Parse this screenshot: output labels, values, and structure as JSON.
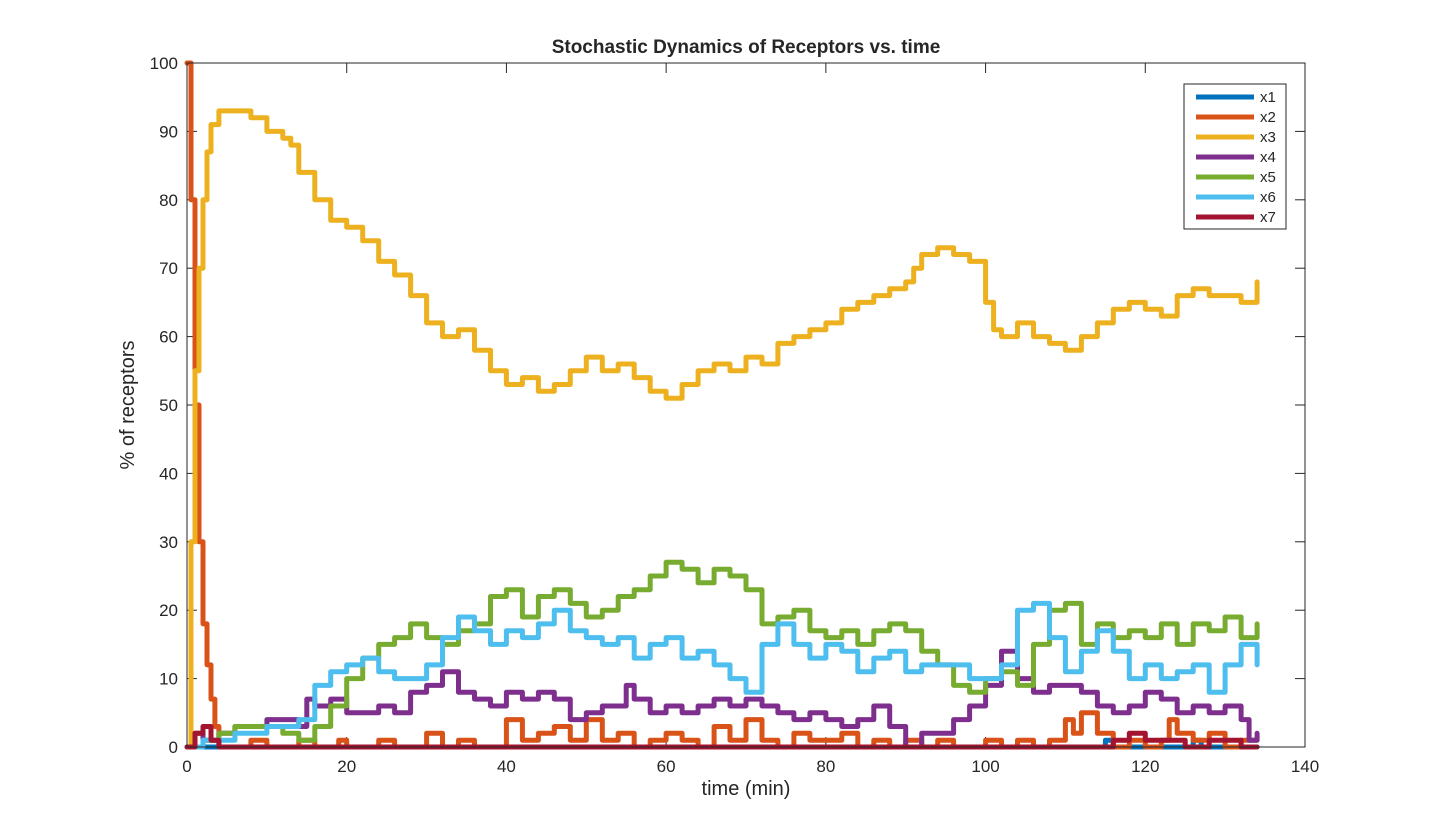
{
  "chart_data": {
    "type": "line",
    "title": "Stochastic Dynamics of Receptors vs. time",
    "xlabel": "time (min)",
    "ylabel": "% of receptors",
    "xlim": [
      0,
      140
    ],
    "ylim": [
      0,
      100
    ],
    "xticks": [
      0,
      20,
      40,
      60,
      80,
      100,
      120,
      140
    ],
    "yticks": [
      0,
      10,
      20,
      30,
      40,
      50,
      60,
      70,
      80,
      90,
      100
    ],
    "grid": false,
    "legend_position": "top-right",
    "series": [
      {
        "name": "x1",
        "color": "#0072BD",
        "x": [
          0,
          10,
          20,
          30,
          40,
          50,
          60,
          70,
          80,
          90,
          100,
          110,
          114,
          115,
          116,
          120,
          125,
          126,
          127,
          130,
          134
        ],
        "y": [
          0,
          0,
          0,
          0,
          0,
          0,
          0,
          0,
          0,
          0,
          0,
          0,
          0,
          1,
          0,
          0,
          0,
          1,
          0,
          0,
          0
        ]
      },
      {
        "name": "x2",
        "color": "#D95319",
        "x": [
          0,
          0.5,
          1,
          1.5,
          2,
          2.5,
          3,
          3.5,
          4,
          6,
          8,
          10,
          12,
          14,
          16,
          18,
          19,
          20,
          24,
          26,
          28,
          30,
          32,
          34,
          36,
          38,
          40,
          42,
          44,
          46,
          48,
          50,
          52,
          54,
          56,
          58,
          60,
          62,
          64,
          66,
          68,
          70,
          72,
          74,
          76,
          78,
          80,
          82,
          84,
          86,
          88,
          90,
          92,
          94,
          96,
          98,
          100,
          102,
          104,
          106,
          108,
          110,
          111,
          112,
          114,
          116,
          118,
          120,
          122,
          123,
          124,
          126,
          128,
          130,
          132,
          134
        ],
        "y": [
          100,
          80,
          50,
          30,
          18,
          12,
          7,
          3,
          0,
          0,
          1,
          0,
          0,
          1,
          0,
          0,
          1,
          0,
          1,
          0,
          0,
          2,
          0,
          1,
          0,
          0,
          4,
          1,
          2,
          3,
          1,
          4,
          1,
          2,
          0,
          1,
          2,
          1,
          0,
          3,
          1,
          4,
          1,
          0,
          2,
          1,
          1,
          2,
          0,
          1,
          0,
          1,
          0,
          1,
          0,
          0,
          1,
          0,
          1,
          0,
          1,
          4,
          2,
          5,
          2,
          0,
          1,
          0,
          1,
          4,
          2,
          1,
          2,
          0,
          1,
          1
        ]
      },
      {
        "name": "x3",
        "color": "#EDB120",
        "x": [
          0,
          0.5,
          1,
          1.5,
          2,
          2.5,
          3,
          4,
          6,
          8,
          10,
          12,
          13,
          14,
          16,
          18,
          20,
          22,
          24,
          26,
          28,
          30,
          32,
          34,
          36,
          38,
          40,
          42,
          44,
          46,
          48,
          50,
          52,
          54,
          56,
          58,
          60,
          62,
          64,
          66,
          68,
          70,
          72,
          74,
          76,
          78,
          80,
          82,
          84,
          86,
          88,
          90,
          91,
          92,
          94,
          96,
          98,
          100,
          101,
          102,
          104,
          106,
          108,
          110,
          112,
          114,
          116,
          118,
          120,
          122,
          124,
          126,
          128,
          130,
          132,
          134
        ],
        "y": [
          0,
          30,
          55,
          70,
          80,
          87,
          91,
          93,
          93,
          92,
          90,
          89,
          88,
          84,
          80,
          77,
          76,
          74,
          71,
          69,
          66,
          62,
          60,
          61,
          58,
          55,
          53,
          54,
          52,
          53,
          55,
          57,
          55,
          56,
          54,
          52,
          51,
          53,
          55,
          56,
          55,
          57,
          56,
          59,
          60,
          61,
          62,
          64,
          65,
          66,
          67,
          68,
          70,
          72,
          73,
          72,
          71,
          65,
          61,
          60,
          62,
          60,
          59,
          58,
          60,
          62,
          64,
          65,
          64,
          63,
          66,
          67,
          66,
          66,
          65,
          68
        ]
      },
      {
        "name": "x4",
        "color": "#7E2F8E",
        "x": [
          0,
          1,
          2,
          4,
          6,
          8,
          10,
          12,
          14,
          15,
          16,
          18,
          20,
          22,
          24,
          26,
          28,
          30,
          32,
          34,
          36,
          38,
          40,
          42,
          44,
          46,
          48,
          50,
          52,
          54,
          55,
          56,
          58,
          60,
          62,
          64,
          66,
          68,
          70,
          72,
          74,
          76,
          78,
          80,
          82,
          84,
          86,
          88,
          90,
          92,
          94,
          96,
          98,
          100,
          102,
          104,
          106,
          108,
          110,
          112,
          114,
          116,
          118,
          120,
          122,
          124,
          126,
          128,
          130,
          132,
          133,
          134
        ],
        "y": [
          0,
          2,
          1,
          2,
          3,
          3,
          4,
          4,
          3,
          7,
          6,
          7,
          5,
          5,
          6,
          5,
          8,
          9,
          11,
          8,
          7,
          6,
          8,
          7,
          8,
          7,
          4,
          5,
          6,
          6,
          9,
          7,
          5,
          6,
          5,
          6,
          7,
          6,
          7,
          6,
          5,
          4,
          5,
          4,
          3,
          4,
          6,
          3,
          0,
          2,
          2,
          4,
          6,
          9,
          14,
          10,
          8,
          9,
          9,
          8,
          6,
          5,
          6,
          8,
          7,
          5,
          6,
          5,
          6,
          4,
          1,
          2
        ]
      },
      {
        "name": "x5",
        "color": "#77AC30",
        "x": [
          0,
          2,
          4,
          6,
          8,
          10,
          12,
          14,
          16,
          18,
          20,
          22,
          24,
          26,
          28,
          30,
          32,
          34,
          36,
          38,
          40,
          42,
          44,
          46,
          48,
          50,
          52,
          54,
          56,
          58,
          60,
          62,
          64,
          66,
          68,
          70,
          72,
          74,
          76,
          78,
          80,
          82,
          84,
          86,
          88,
          90,
          92,
          94,
          96,
          98,
          100,
          102,
          104,
          106,
          108,
          110,
          112,
          114,
          116,
          118,
          120,
          122,
          124,
          126,
          128,
          130,
          132,
          134
        ],
        "y": [
          0,
          1,
          2,
          3,
          3,
          3,
          2,
          1,
          3,
          6,
          10,
          13,
          15,
          16,
          18,
          16,
          15,
          17,
          18,
          22,
          23,
          19,
          22,
          23,
          21,
          19,
          20,
          22,
          23,
          25,
          27,
          26,
          24,
          26,
          25,
          23,
          18,
          19,
          20,
          17,
          16,
          17,
          15,
          17,
          18,
          17,
          14,
          12,
          9,
          8,
          10,
          11,
          9,
          15,
          20,
          21,
          15,
          18,
          16,
          17,
          16,
          18,
          15,
          18,
          17,
          19,
          16,
          18
        ]
      },
      {
        "name": "x6",
        "color": "#4DBEEE",
        "x": [
          0,
          2,
          4,
          6,
          8,
          10,
          12,
          14,
          16,
          18,
          20,
          22,
          24,
          26,
          28,
          30,
          32,
          34,
          36,
          38,
          40,
          42,
          44,
          46,
          48,
          50,
          52,
          54,
          56,
          58,
          60,
          62,
          64,
          66,
          68,
          70,
          72,
          74,
          76,
          78,
          80,
          82,
          84,
          86,
          88,
          90,
          92,
          94,
          96,
          98,
          100,
          102,
          104,
          106,
          108,
          110,
          112,
          114,
          116,
          118,
          120,
          122,
          124,
          126,
          128,
          130,
          132,
          134
        ],
        "y": [
          0,
          1,
          1,
          2,
          2,
          3,
          3,
          4,
          9,
          11,
          12,
          13,
          11,
          10,
          10,
          12,
          16,
          19,
          17,
          15,
          17,
          16,
          18,
          20,
          17,
          16,
          15,
          16,
          13,
          15,
          16,
          13,
          14,
          12,
          10,
          8,
          15,
          18,
          15,
          13,
          15,
          14,
          11,
          13,
          14,
          11,
          12,
          12,
          12,
          10,
          10,
          12,
          20,
          21,
          16,
          11,
          14,
          17,
          14,
          10,
          12,
          10,
          11,
          12,
          8,
          12,
          15,
          12
        ]
      },
      {
        "name": "x7",
        "color": "#A2142F",
        "x": [
          0,
          1,
          2,
          3,
          4,
          5,
          10,
          20,
          30,
          40,
          50,
          60,
          70,
          80,
          90,
          100,
          110,
          115,
          116,
          118,
          120,
          124,
          125,
          128,
          130,
          132,
          134
        ],
        "y": [
          0,
          2,
          3,
          1,
          0,
          0,
          0,
          0,
          0,
          0,
          0,
          0,
          0,
          0,
          0,
          0,
          0,
          0,
          1,
          2,
          1,
          1,
          0,
          1,
          1,
          0,
          0
        ]
      }
    ]
  }
}
